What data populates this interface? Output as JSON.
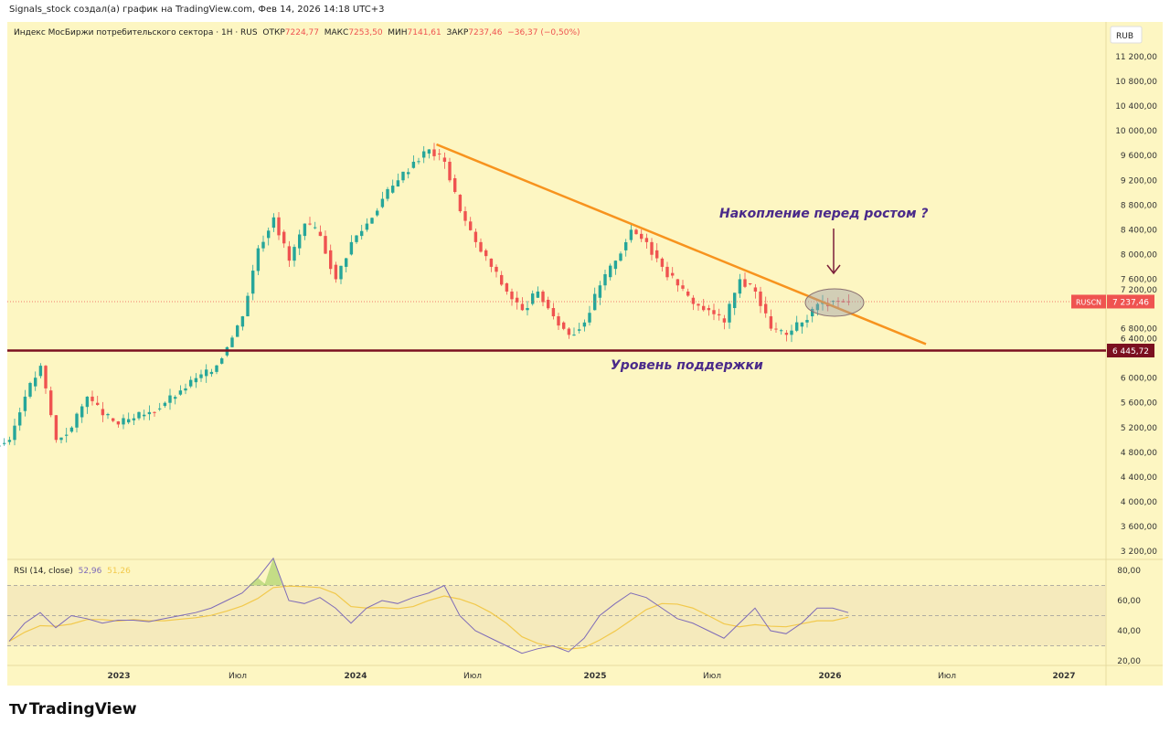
{
  "credit": "Signals_stock создал(а) график на TradingView.com, Фев 14, 2026 14:18 UTC+3",
  "legend": {
    "title": "Индекс МосБиржи потребительского сектора · 1H · RUS",
    "open_label": "ОТКР",
    "open": "7224,77",
    "high_label": "МАКС",
    "high": "7253,50",
    "low_label": "МИН",
    "low": "7141,61",
    "close_label": "ЗАКР",
    "close": "7237,46",
    "change": "−36,37 (−0,50%)"
  },
  "currency": "RUB",
  "rsi": {
    "label": "RSI (14, close)",
    "value": "52,96",
    "ma_value": "51,26"
  },
  "logo": "TradingView",
  "colors": {
    "up": "#26a69a",
    "down": "#ef5350",
    "trend": "#f7931e",
    "support": "#7b1020",
    "text": "#4a2a8a",
    "rsi": "#7e6bb8",
    "rsi_ma": "#f2c94c"
  },
  "chart_data": [
    {
      "type": "candlestick",
      "title": "RUSCN",
      "ylim": [
        3000,
        11600
      ],
      "y_ticks": [
        "11 200,00",
        "10 800,00",
        "10 400,00",
        "10 000,00",
        "9 600,00",
        "9 200,00",
        "8 800,00",
        "8 400,00",
        "8 000,00",
        "7 600,00",
        "7 200,00",
        "6 800,00",
        "6 400,00",
        "6 000,00",
        "5 600,00",
        "5 200,00",
        "4 800,00",
        "4 400,00",
        "4 000,00",
        "3 600,00",
        "3 200,00"
      ],
      "y_tick_values": [
        11200,
        10800,
        10400,
        10000,
        9600,
        9200,
        8800,
        8400,
        8000,
        7600,
        7200,
        6800,
        6400,
        6000,
        5600,
        5200,
        4800,
        4400,
        4000,
        3600,
        3200
      ],
      "x_ticks": [
        "2023",
        "Июл",
        "2024",
        "Июл",
        "2025",
        "Июл",
        "2026",
        "Июл",
        "2027"
      ],
      "closes": [
        5000,
        5700,
        6200,
        5000,
        5200,
        5700,
        5400,
        5250,
        5350,
        5450,
        5600,
        5800,
        6000,
        6100,
        6500,
        7000,
        8100,
        8600,
        7900,
        8500,
        8300,
        7600,
        8200,
        8500,
        8900,
        9200,
        9500,
        9700,
        9500,
        8700,
        8200,
        7800,
        7400,
        7100,
        7400,
        7000,
        6700,
        6900,
        7500,
        7900,
        8400,
        8200,
        7800,
        7500,
        7200,
        7100,
        6900,
        7600,
        7400,
        6800,
        6700,
        6900,
        7200,
        7250,
        7237
      ],
      "last_price_label": "RUSCN",
      "last_price": "7 237,46",
      "last_price_value": 7237.46,
      "support_label": "6 445,72",
      "support_value": 6445.72,
      "trendline": {
        "start_index": 27.5,
        "start_price": 9780,
        "end_index": 59,
        "end_price": 6550
      },
      "annotations": {
        "accumulation": "Накопление перед ростом ?",
        "support": "Уровень поддержки"
      }
    },
    {
      "type": "line",
      "title": "RSI (14, close)",
      "ylim": [
        10,
        90
      ],
      "y_ticks": [
        "80,00",
        "60,00",
        "40,00",
        "20,00"
      ],
      "y_tick_values": [
        80,
        60,
        40,
        20
      ],
      "bands": [
        30,
        70
      ],
      "values": [
        33,
        45,
        52,
        42,
        50,
        48,
        45,
        47,
        47,
        46,
        48,
        50,
        52,
        55,
        60,
        65,
        75,
        88,
        60,
        58,
        62,
        55,
        45,
        55,
        60,
        58,
        62,
        65,
        70,
        50,
        40,
        35,
        30,
        25,
        28,
        30,
        26,
        35,
        50,
        58,
        65,
        62,
        55,
        48,
        45,
        40,
        35,
        45,
        55,
        40,
        38,
        45,
        55,
        55,
        52
      ]
    }
  ]
}
